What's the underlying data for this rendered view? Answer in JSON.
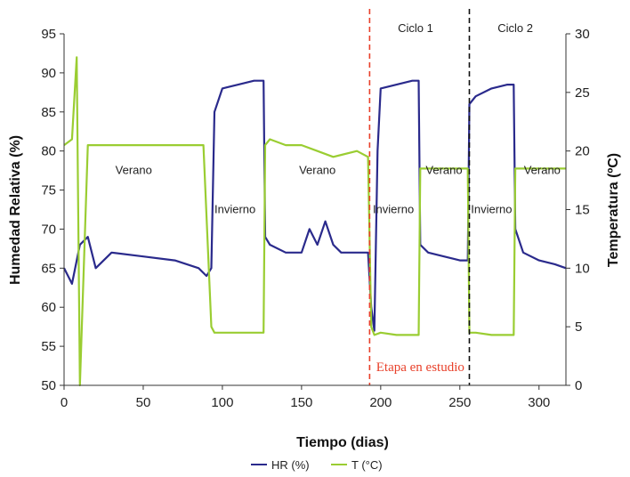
{
  "chart_data": {
    "type": "line",
    "title": "",
    "xlabel": "Tiempo (dias)",
    "ylabel_left": "Humedad Relativa (%)",
    "ylabel_right": "Temperatura (ºC)",
    "xlim": [
      0,
      317
    ],
    "ylim_left": [
      50,
      95
    ],
    "ylim_right": [
      0,
      30
    ],
    "x_ticks": [
      0,
      50,
      100,
      150,
      200,
      250,
      300
    ],
    "y_left_ticks": [
      50,
      55,
      60,
      65,
      70,
      75,
      80,
      85,
      90,
      95
    ],
    "y_right_ticks": [
      0,
      5,
      10,
      15,
      20,
      25,
      30
    ],
    "grid": false,
    "legend_position": "bottom",
    "colors": {
      "hr": "#2a2a8c",
      "t": "#9acd32",
      "red_line": "#e8402a",
      "black_line": "#111111"
    },
    "series": [
      {
        "name": "HR (%)",
        "axis": "left",
        "x": [
          0,
          5,
          10,
          15,
          20,
          30,
          50,
          70,
          85,
          90,
          93,
          95,
          100,
          110,
          120,
          126,
          127,
          130,
          140,
          150,
          155,
          160,
          165,
          170,
          175,
          185,
          192,
          194,
          196,
          198,
          200,
          210,
          220,
          224,
          225,
          230,
          240,
          250,
          255,
          256,
          260,
          270,
          280,
          284,
          285,
          290,
          300,
          310,
          317
        ],
        "values": [
          65,
          63,
          68,
          69,
          65,
          67,
          66.5,
          66,
          65,
          64,
          65,
          85,
          88,
          88.5,
          89,
          89,
          69,
          68,
          67,
          67,
          70,
          68,
          71,
          68,
          67,
          67,
          67,
          60,
          57,
          80,
          88,
          88.5,
          89,
          89,
          68,
          67,
          66.5,
          66,
          66,
          86,
          87,
          88,
          88.5,
          88.5,
          70,
          67,
          66,
          65.5,
          65
        ]
      },
      {
        "name": "T (°C)",
        "axis": "right",
        "x": [
          0,
          5,
          8,
          10,
          15,
          30,
          50,
          70,
          85,
          88,
          93,
          95,
          100,
          110,
          120,
          126,
          127,
          130,
          140,
          150,
          160,
          170,
          185,
          192,
          194,
          196,
          200,
          210,
          220,
          224,
          225,
          230,
          240,
          250,
          255,
          256,
          260,
          270,
          280,
          284,
          285,
          290,
          300,
          310,
          317
        ],
        "values": [
          20.5,
          21,
          28,
          0,
          20.5,
          20.5,
          20.5,
          20.5,
          20.5,
          20.5,
          5,
          4.5,
          4.5,
          4.5,
          4.5,
          4.5,
          20.5,
          21,
          20.5,
          20.5,
          20,
          19.5,
          20,
          19.5,
          5,
          4.3,
          4.5,
          4.3,
          4.3,
          4.3,
          18.5,
          18.5,
          18.5,
          18.5,
          18.5,
          4.5,
          4.5,
          4.3,
          4.3,
          4.3,
          18.5,
          18.5,
          18.5,
          18.5,
          18.5
        ]
      }
    ],
    "vertical_lines": [
      {
        "x": 193,
        "style": "dashed",
        "color": "#e8402a"
      },
      {
        "x": 256,
        "style": "dashed",
        "color": "#111111"
      }
    ],
    "season_labels": [
      {
        "text": "Verano",
        "x": 44,
        "y": 77.5
      },
      {
        "text": "Invierno",
        "x": 108,
        "y": 72.5
      },
      {
        "text": "Verano",
        "x": 160,
        "y": 77.5
      },
      {
        "text": "Invierno",
        "x": 208,
        "y": 72.5
      },
      {
        "text": "Verano",
        "x": 240,
        "y": 77.5
      },
      {
        "text": "Invierno",
        "x": 270,
        "y": 72.5
      },
      {
        "text": "Verano",
        "x": 302,
        "y": 77.5
      }
    ],
    "annotations": [
      {
        "text": "Ciclo 1",
        "x": 222,
        "y": 95
      },
      {
        "text": "Ciclo 2",
        "x": 285,
        "y": 95
      },
      {
        "text": "Etapa en estudio",
        "x": 225,
        "y": 52.5,
        "color": "#e8402a"
      }
    ]
  }
}
